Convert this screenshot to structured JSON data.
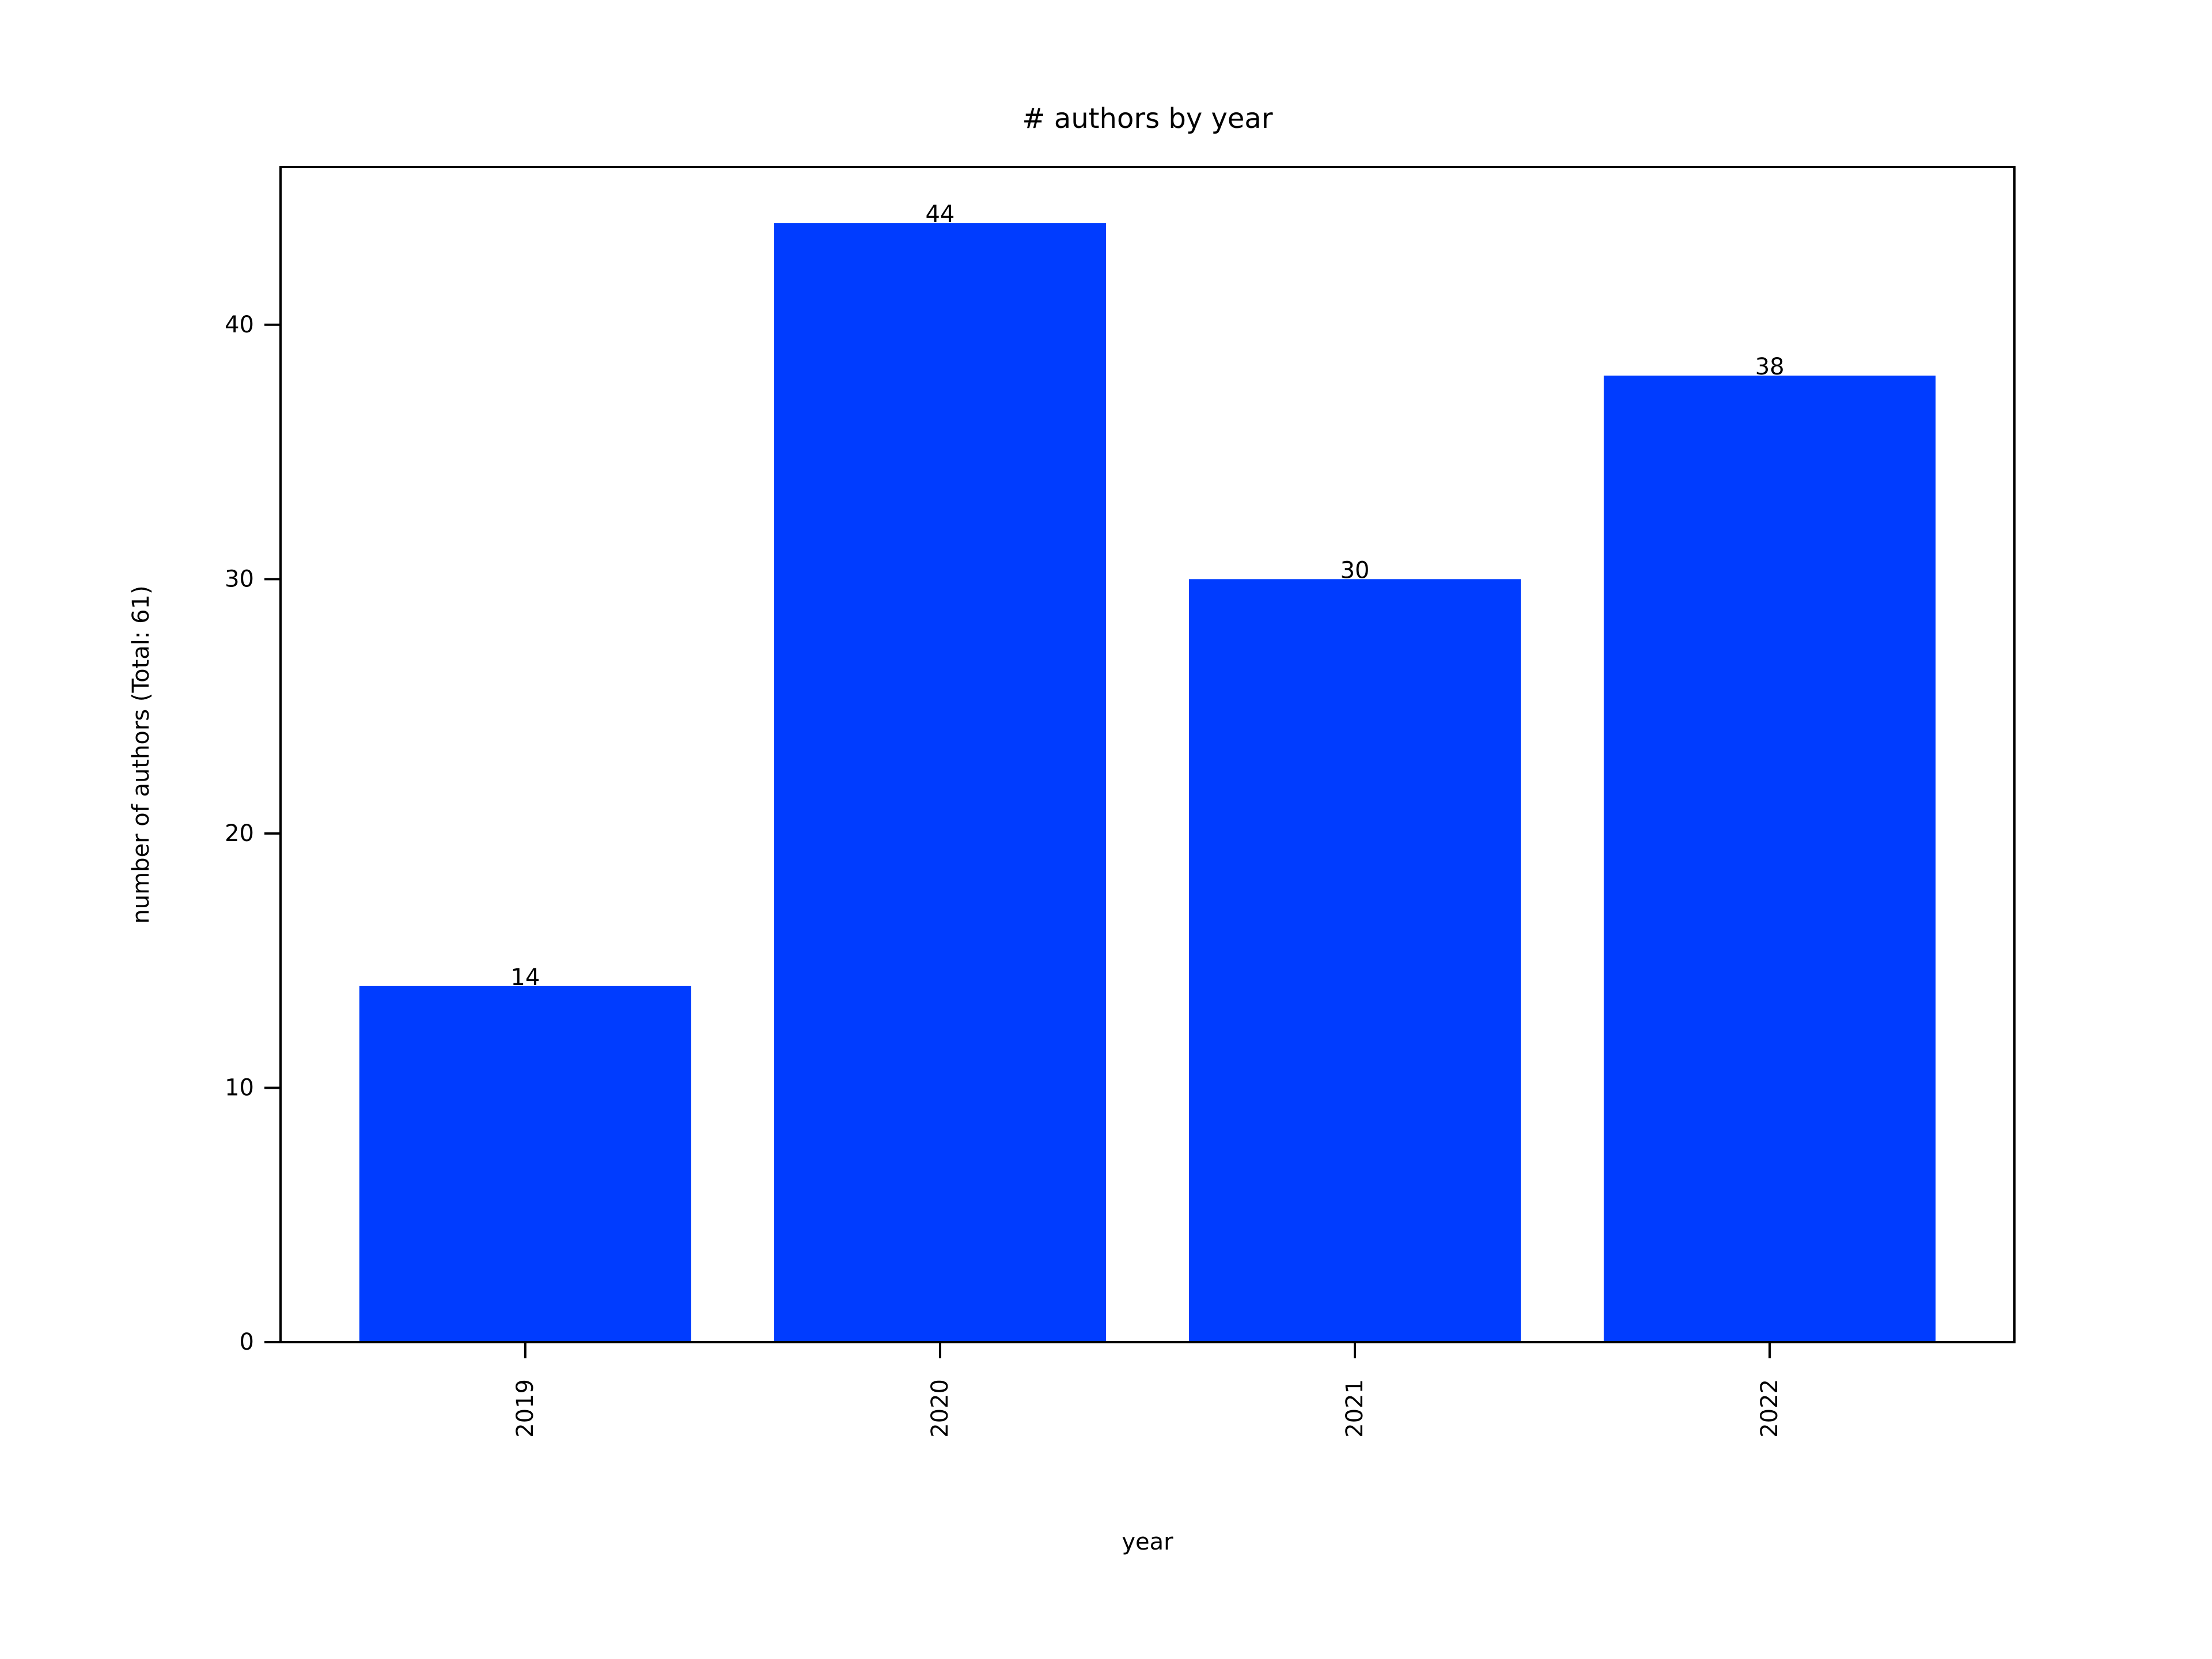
{
  "chart_data": {
    "type": "bar",
    "title": "# authors by year",
    "xlabel": "year",
    "ylabel": "number of authors (Total: 61)",
    "categories": [
      "2019",
      "2020",
      "2021",
      "2022"
    ],
    "values": [
      14,
      44,
      30,
      38
    ],
    "data_labels": [
      "14",
      "44",
      "30",
      "38"
    ],
    "ylim": [
      0,
      46.2
    ],
    "yticks": [
      0,
      10,
      20,
      30,
      40
    ],
    "ytick_labels": [
      "0",
      "10",
      "20",
      "30",
      "40"
    ],
    "bar_color": "#003cff",
    "grid": false,
    "legend": "none"
  }
}
